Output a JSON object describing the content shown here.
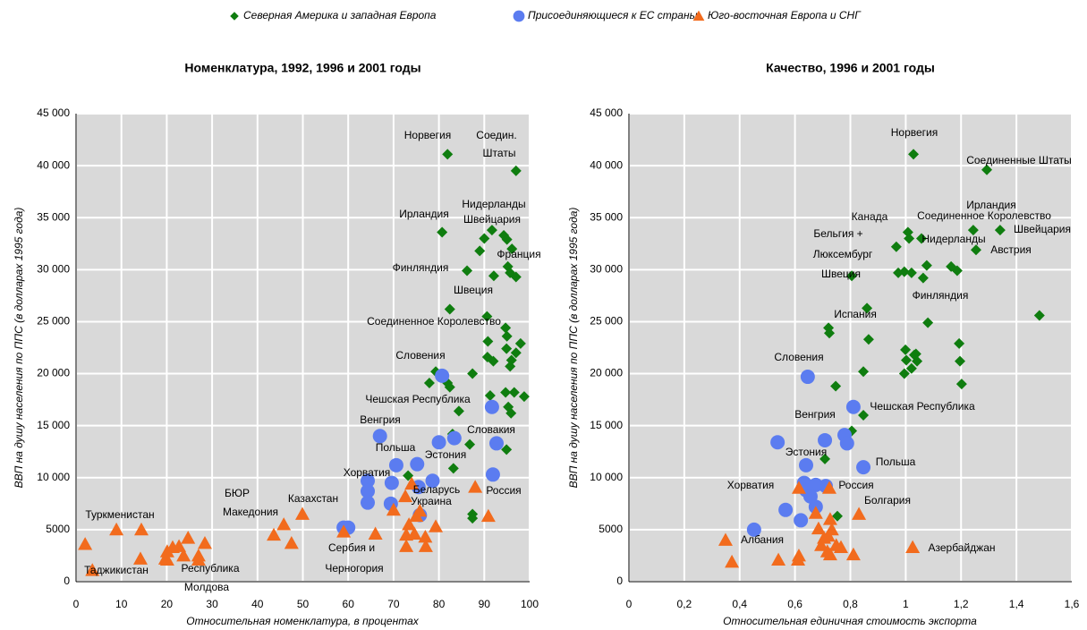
{
  "chart_data": [
    {
      "type": "scatter",
      "title": "Номенклатура, 1992, 1996 и 2001 годы",
      "x_label": "Относительная номенклатура, в процентах",
      "y_label": "ВВП на душу населения по ППС (в долларах 1995 года)",
      "xlim": [
        0,
        100
      ],
      "xticks": [
        0,
        10,
        20,
        30,
        40,
        50,
        60,
        70,
        80,
        90,
        100
      ],
      "ylim": [
        0,
        45000
      ],
      "yticks": [
        0,
        5000,
        {
          "value": 10000,
          "label": "10 000"
        },
        {
          "value": 15000,
          "label": "15 000"
        },
        {
          "value": 20000,
          "label": "20 000"
        },
        {
          "value": 25000,
          "label": "25 000"
        },
        {
          "value": 30000,
          "label": "30 000"
        },
        {
          "value": 35000,
          "label": "35 000"
        },
        {
          "value": 40000,
          "label": "40 000"
        },
        {
          "value": 45000,
          "label": "45 000"
        }
      ],
      "grid": true,
      "series": [
        {
          "name": "Северная Америка и западная Европа",
          "color": "#0f7d0f",
          "marker": "diamond",
          "x": [
            81.9,
            97,
            91.7,
            80.7,
            90,
            94.3,
            95,
            96.1,
            89,
            86.2,
            92.1,
            95.2,
            95.7,
            97,
            82.4,
            90.6,
            94.7,
            95,
            90.8,
            98,
            94.9,
            97,
            96,
            90.7,
            92,
            95.7,
            79.3,
            87.4,
            77.9,
            81.9,
            82.4,
            98.8,
            96.6,
            91.3,
            94.7,
            95.3,
            95.9,
            84.4,
            86.8,
            83,
            94.9,
            83.2,
            73.2,
            87.4,
            87.4
          ],
          "y": [
            41100,
            39500,
            33800,
            33600,
            33000,
            33300,
            32900,
            32000,
            31800,
            29900,
            29400,
            30300,
            29700,
            29300,
            26200,
            25500,
            24400,
            23600,
            23100,
            22900,
            22400,
            22000,
            21300,
            21600,
            21200,
            20700,
            20200,
            20000,
            19100,
            19100,
            18700,
            17800,
            18200,
            17900,
            18200,
            16800,
            16200,
            16400,
            13200,
            14200,
            12700,
            10900,
            10200,
            6500,
            6100
          ]
        },
        {
          "name": "Присоединяющиеся к ЕС страны",
          "color": "#5b7cf0",
          "marker": "circle",
          "x": [
            80.7,
            91.7,
            67,
            80,
            83.4,
            92.7,
            70.6,
            75.2,
            64.3,
            69.6,
            78.6,
            91.9,
            64.3,
            69.4,
            64.3,
            75.5,
            75.8,
            59,
            60
          ],
          "y": [
            19800,
            16800,
            14000,
            13400,
            13800,
            13300,
            11200,
            11300,
            9700,
            9500,
            9700,
            10300,
            8700,
            7500,
            7600,
            9100,
            6400,
            5200,
            5200
          ]
        },
        {
          "name": "Юго-восточная Европа и СНГ",
          "color": "#f26b1d",
          "marker": "triangle",
          "x": [
            2,
            3.6,
            8.9,
            14.4,
            14.2,
            19.7,
            20.1,
            21.3,
            22.7,
            20.1,
            24.7,
            23.7,
            27,
            27,
            28.4,
            43.6,
            45.8,
            47.5,
            49.9,
            59,
            66,
            70,
            72.6,
            73.4,
            72.8,
            72.8,
            74,
            74.6,
            75,
            75.8,
            77,
            77.1,
            79.3,
            88,
            90.9
          ],
          "y": [
            3600,
            1100,
            5000,
            5000,
            2200,
            2200,
            2900,
            3300,
            3400,
            2100,
            4200,
            2500,
            2500,
            2100,
            3700,
            4500,
            5500,
            3700,
            6500,
            4800,
            4600,
            6900,
            8200,
            5500,
            3400,
            4500,
            9400,
            4600,
            6300,
            6800,
            4300,
            3400,
            5300,
            9100,
            6300
          ]
        }
      ],
      "annotations": [
        "Норвегия",
        "Соедин.",
        "Штаты",
        "Нидерланды",
        "Швейцария",
        "Ирландия",
        "Франция",
        "Финляндия",
        "Швеция",
        "Соединенное Королевство",
        "Словения",
        "Чешская Республика",
        "Венгрия",
        "Словакия",
        "Польша",
        "Эстония",
        "Хорватия",
        "Беларусь",
        "Украина",
        "Россия",
        "Казахстан",
        "БЮР",
        "Македония",
        "Туркменистан",
        "Таджикистан",
        "Республика",
        "Молдова",
        "Сербия и",
        "Черногория"
      ]
    },
    {
      "type": "scatter",
      "title": "Качество, 1996 и 2001 годы",
      "x_label": "Относительная единичная стоимость экспорта",
      "y_label": "ВВП на душу населения по ППС (в долларах 1995 года)",
      "xlim": [
        0,
        1.6
      ],
      "xticks": [
        0,
        {
          "value": 0.2,
          "label": "0,2"
        },
        {
          "value": 0.4,
          "label": "0,4"
        },
        {
          "value": 0.6,
          "label": "0,6"
        },
        {
          "value": 0.8,
          "label": "0,8"
        },
        1,
        {
          "value": 1.2,
          "label": "1,2"
        },
        {
          "value": 1.4,
          "label": "1,4"
        },
        {
          "value": 1.6,
          "label": "1,6"
        }
      ],
      "ylim": [
        0,
        45000
      ],
      "yticks": [
        0,
        5000,
        {
          "value": 10000,
          "label": "10 000"
        },
        {
          "value": 15000,
          "label": "15 000"
        },
        {
          "value": 20000,
          "label": "20 000"
        },
        {
          "value": 25000,
          "label": "25 000"
        },
        {
          "value": 30000,
          "label": "30 000"
        },
        {
          "value": 35000,
          "label": "35 000"
        },
        {
          "value": 40000,
          "label": "40 000"
        },
        {
          "value": 45000,
          "label": "45 000"
        }
      ],
      "grid": true,
      "series": [
        {
          "name": "Северная Америка и западная Европа",
          "color": "#0f7d0f",
          "marker": "diamond",
          "x": [
            1.028,
            1.293,
            1.008,
            1.012,
            1.057,
            1.244,
            1.341,
            1.254,
            0.966,
            1.076,
            0.805,
            0.973,
            0.995,
            1.021,
            1.186,
            1.063,
            1.164,
            0.86,
            1.483,
            1.08,
            0.721,
            0.724,
            1.037,
            0.866,
            0.999,
            1.031,
            1.002,
            1.193,
            1.041,
            0.995,
            1.196,
            1.021,
            0.847,
            0.747,
            1.202,
            0.847,
            0.805,
            0.708,
            0.753
          ],
          "y": [
            41100,
            39600,
            33600,
            33000,
            33000,
            33800,
            33800,
            31900,
            32200,
            30400,
            29400,
            29700,
            29800,
            29700,
            29900,
            29200,
            30300,
            26300,
            25600,
            24900,
            24400,
            23900,
            21900,
            23300,
            22300,
            21800,
            21300,
            22900,
            21200,
            20000,
            21200,
            20500,
            20200,
            18800,
            19000,
            16000,
            14500,
            11800,
            6300
          ]
        },
        {
          "name": "Присоединяющиеся к ЕС страны",
          "color": "#5b7cf0",
          "marker": "circle",
          "x": [
            0.646,
            0.811,
            0.537,
            0.779,
            0.708,
            0.788,
            0.64,
            0.847,
            0.633,
            0.675,
            0.711,
            0.64,
            0.656,
            0.675,
            0.566,
            0.621,
            0.452
          ],
          "y": [
            19700,
            16800,
            13400,
            14100,
            13600,
            13300,
            11200,
            11000,
            9500,
            9300,
            9200,
            8800,
            8200,
            7200,
            6900,
            5900,
            5000
          ]
        },
        {
          "name": "Юго-восточная Европа и СНГ",
          "color": "#f26b1d",
          "marker": "triangle",
          "x": [
            0.614,
            0.724,
            0.675,
            0.727,
            0.831,
            0.685,
            0.733,
            0.72,
            0.749,
            0.695,
            0.717,
            0.766,
            0.811,
            0.727,
            0.614,
            0.611,
            0.54,
            1.025,
            0.349,
            0.372,
            0.705
          ],
          "y": [
            9000,
            9000,
            6600,
            6000,
            6500,
            5100,
            5000,
            4400,
            3500,
            3500,
            2900,
            3300,
            2600,
            2600,
            2500,
            2100,
            2100,
            3300,
            4000,
            1900,
            4200
          ]
        }
      ],
      "annotations": [
        "Норвегия",
        "Соединенные Штаты",
        "Ирландия",
        "Соединенное Королевство",
        "Швейцария",
        "Канада",
        "Нидерланды",
        "Австрия",
        "Бельгия +",
        "Люксембург",
        "Швеция",
        "Финляндия",
        "Испания",
        "Словения",
        "Чешская Республика",
        "Венгрия",
        "Эстония",
        "Польша",
        "Хорватия",
        "Россия",
        "Болгария",
        "Албания",
        "Азербайджан"
      ]
    }
  ]
}
